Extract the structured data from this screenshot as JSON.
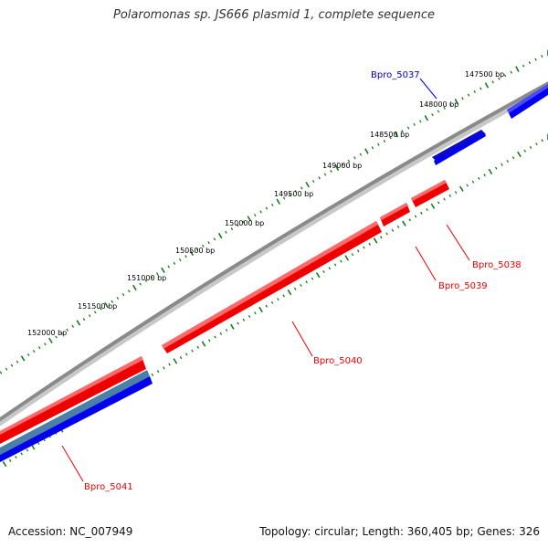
{
  "title": "Polaromonas sp. JS666 plasmid 1, complete sequence",
  "footer": {
    "accession": "Accession: NC_007949",
    "summary": "Topology: circular; Length: 360,405 bp; Genes: 326"
  },
  "colors": {
    "backbone": "#8a8a8a",
    "forward_gene": "#0000ee",
    "reverse_gene": "#ee0000",
    "rna_gene": "#4a7fa8",
    "tick": "#1a7a1a"
  },
  "ticks": [
    "147500 bp",
    "148000 bp",
    "148500 bp",
    "149000 bp",
    "149500 bp",
    "150000 bp",
    "150500 bp",
    "151000 bp",
    "151500 bp",
    "152000 bp"
  ],
  "genes": [
    {
      "id": "Bpro_5037",
      "strand": "forward"
    },
    {
      "id": "Bpro_5038",
      "strand": "reverse"
    },
    {
      "id": "Bpro_5039",
      "strand": "reverse"
    },
    {
      "id": "Bpro_5040",
      "strand": "reverse"
    },
    {
      "id": "Bpro_5041",
      "strand": "reverse"
    }
  ]
}
